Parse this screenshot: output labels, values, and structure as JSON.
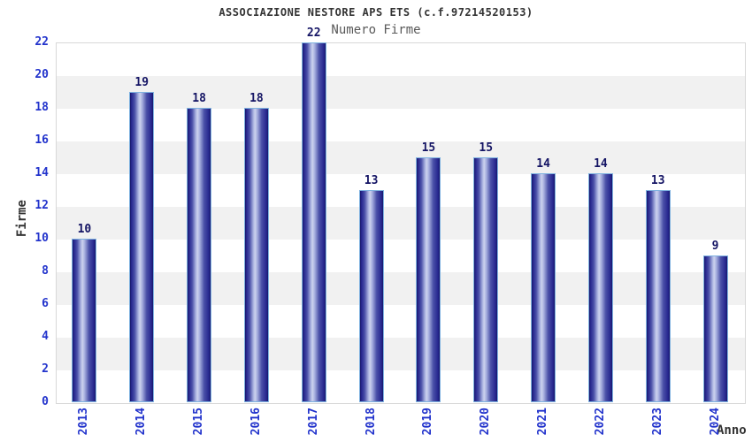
{
  "header": {
    "title": "ASSOCIAZIONE NESTORE APS ETS (c.f.97214520153)",
    "subtitle": "Numero Firme"
  },
  "chart_data": {
    "type": "bar",
    "title": "ASSOCIAZIONE NESTORE APS ETS (c.f.97214520153)",
    "subtitle": "Numero Firme",
    "xlabel": "Anno",
    "ylabel": "Firme",
    "categories": [
      "2013",
      "2014",
      "2015",
      "2016",
      "2017",
      "2018",
      "2019",
      "2020",
      "2021",
      "2022",
      "2023",
      "2024"
    ],
    "values": [
      10,
      19,
      18,
      18,
      22,
      13,
      15,
      15,
      14,
      14,
      13,
      9
    ],
    "ylim": [
      0,
      22
    ],
    "ytick_step": 2,
    "yticks": [
      0,
      2,
      4,
      6,
      8,
      10,
      12,
      14,
      16,
      18,
      20,
      22
    ],
    "grid": "alternating-horizontal-bands",
    "legend": "none",
    "bar_labels_shown": true,
    "colors": {
      "tick_label": "#2233cc",
      "bar_value_label": "#141464",
      "bar_dark": "#181868",
      "bar_mid": "#4a50a8",
      "bar_highlight": "#ccd2ee",
      "bar_border": "#7fb2e0",
      "band_gray": "#f1f1f1",
      "plot_border": "#d8d8d8",
      "title_color": "#333333",
      "subtitle_color": "#595959",
      "background": "#ffffff"
    }
  }
}
